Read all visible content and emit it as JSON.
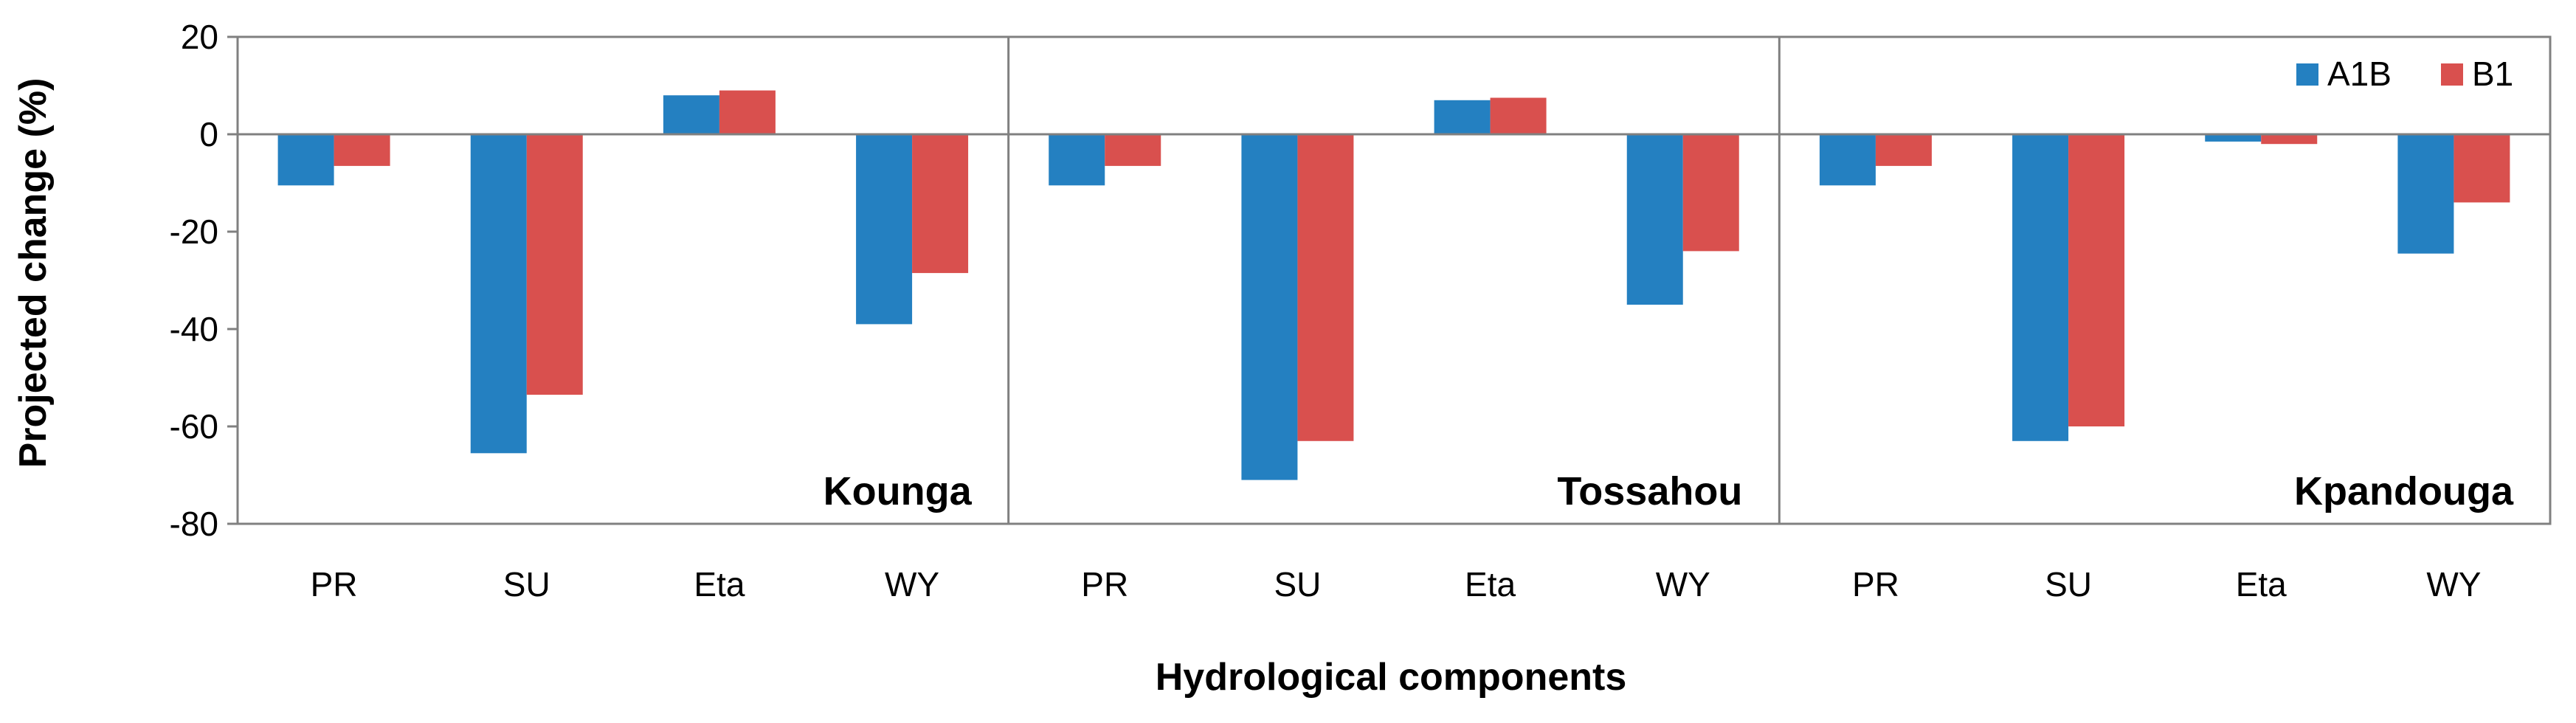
{
  "chart_data": {
    "type": "bar",
    "title": "",
    "xlabel": "Hydrological components",
    "ylabel": "Projected change (%)",
    "ylim": [
      -80,
      20
    ],
    "yticks": [
      20,
      0,
      -20,
      -40,
      -60,
      -80
    ],
    "grid": false,
    "legend_position": "top-right",
    "categories": [
      "PR",
      "SU",
      "Eta",
      "WY"
    ],
    "colors": {
      "A1B": "#2480C1",
      "B1": "#D9504E"
    },
    "panels": [
      {
        "name": "Kounga",
        "series": [
          {
            "name": "A1B",
            "values": [
              -10.5,
              -65.5,
              8,
              -39
            ]
          },
          {
            "name": "B1",
            "values": [
              -6.5,
              -53.5,
              9,
              -28.5
            ]
          }
        ]
      },
      {
        "name": "Tossahou",
        "series": [
          {
            "name": "A1B",
            "values": [
              -10.5,
              -71,
              7,
              -35
            ]
          },
          {
            "name": "B1",
            "values": [
              -6.5,
              -63,
              7.5,
              -24
            ]
          }
        ]
      },
      {
        "name": "Kpandouga",
        "series": [
          {
            "name": "A1B",
            "values": [
              -10.5,
              -63,
              -1.5,
              -24.5
            ]
          },
          {
            "name": "B1",
            "values": [
              -6.5,
              -60,
              -2,
              -14
            ]
          }
        ]
      }
    ]
  }
}
